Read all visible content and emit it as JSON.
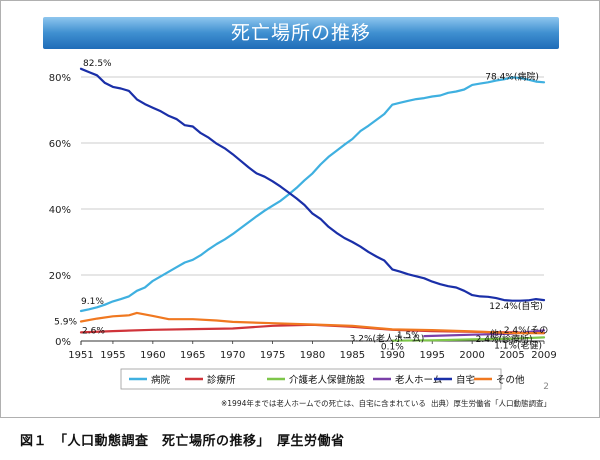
{
  "page": {
    "title": "死亡場所の推移",
    "footnote": "※1994年までは老人ホームでの死亡は、自宅に含まれている",
    "source": "出典）厚生労働省「人口動態調査」",
    "slide_number": "2",
    "caption": "図１　「人口動態調査　死亡場所の推移」　厚生労働省"
  },
  "colors": {
    "hospital": "#3fb0e0",
    "clinic": "#d0343a",
    "care_facility": "#7ec64a",
    "nursing_home": "#7a3fa8",
    "home": "#1a2fa8",
    "other": "#f07820",
    "title_band": "#2f7cc4"
  },
  "chart_data": {
    "type": "line",
    "title": "",
    "xlabel": "",
    "ylabel": "",
    "xlim": [
      1951,
      2009
    ],
    "ylim": [
      0,
      85
    ],
    "x_ticks": [
      "1951",
      "1955",
      "1960",
      "1965",
      "1970",
      "1975",
      "1980",
      "1985",
      "1990",
      "1995",
      "2000",
      "2005",
      "2009"
    ],
    "y_ticks": [
      "0%",
      "20%",
      "40%",
      "60%",
      "80%"
    ],
    "legend_placement": "bottom",
    "series": [
      {
        "name": "病院",
        "key": "hospital",
        "points": [
          [
            1951,
            9.1
          ],
          [
            1952,
            9.6
          ],
          [
            1953,
            10.2
          ],
          [
            1954,
            11.0
          ],
          [
            1955,
            12.0
          ],
          [
            1956,
            12.7
          ],
          [
            1957,
            13.5
          ],
          [
            1958,
            15.2
          ],
          [
            1959,
            16.2
          ],
          [
            1960,
            18.2
          ],
          [
            1961,
            19.6
          ],
          [
            1962,
            21.0
          ],
          [
            1963,
            22.4
          ],
          [
            1964,
            23.8
          ],
          [
            1965,
            24.6
          ],
          [
            1966,
            26.0
          ],
          [
            1967,
            27.8
          ],
          [
            1968,
            29.4
          ],
          [
            1969,
            30.8
          ],
          [
            1970,
            32.4
          ],
          [
            1971,
            34.2
          ],
          [
            1972,
            36.0
          ],
          [
            1973,
            37.8
          ],
          [
            1974,
            39.5
          ],
          [
            1975,
            41.0
          ],
          [
            1976,
            42.5
          ],
          [
            1977,
            44.4
          ],
          [
            1978,
            46.4
          ],
          [
            1979,
            48.7
          ],
          [
            1980,
            50.8
          ],
          [
            1981,
            53.5
          ],
          [
            1982,
            55.8
          ],
          [
            1983,
            57.6
          ],
          [
            1984,
            59.5
          ],
          [
            1985,
            61.2
          ],
          [
            1986,
            63.6
          ],
          [
            1987,
            65.2
          ],
          [
            1988,
            67.0
          ],
          [
            1989,
            68.8
          ],
          [
            1990,
            71.6
          ],
          [
            1991,
            72.2
          ],
          [
            1992,
            72.8
          ],
          [
            1993,
            73.3
          ],
          [
            1994,
            73.6
          ],
          [
            1995,
            74.1
          ],
          [
            1996,
            74.4
          ],
          [
            1997,
            75.2
          ],
          [
            1998,
            75.6
          ],
          [
            1999,
            76.2
          ],
          [
            2000,
            77.6
          ],
          [
            2001,
            78.0
          ],
          [
            2002,
            78.4
          ],
          [
            2003,
            78.9
          ],
          [
            2004,
            79.3
          ],
          [
            2005,
            79.9
          ],
          [
            2006,
            79.7
          ],
          [
            2007,
            79.2
          ],
          [
            2008,
            78.6
          ],
          [
            2009,
            78.4
          ]
        ]
      },
      {
        "name": "診療所",
        "key": "clinic",
        "points": [
          [
            1951,
            2.6
          ],
          [
            1955,
            3.0
          ],
          [
            1960,
            3.4
          ],
          [
            1965,
            3.6
          ],
          [
            1970,
            3.8
          ],
          [
            1975,
            4.6
          ],
          [
            1980,
            4.9
          ],
          [
            1985,
            4.3
          ],
          [
            1990,
            3.4
          ],
          [
            1995,
            3.0
          ],
          [
            2000,
            2.8
          ],
          [
            2005,
            2.6
          ],
          [
            2009,
            2.4
          ]
        ]
      },
      {
        "name": "介護老人保健施設",
        "key": "care_facility",
        "points": [
          [
            1990,
            0.1
          ],
          [
            1995,
            0.2
          ],
          [
            2000,
            0.5
          ],
          [
            2005,
            0.7
          ],
          [
            2009,
            1.1
          ]
        ]
      },
      {
        "name": "老人ホーム",
        "key": "nursing_home",
        "points": [
          [
            1994,
            1.5
          ],
          [
            2000,
            1.9
          ],
          [
            2005,
            2.2
          ],
          [
            2009,
            3.2
          ]
        ]
      },
      {
        "name": "自宅",
        "key": "home",
        "points": [
          [
            1951,
            82.5
          ],
          [
            1952,
            81.5
          ],
          [
            1953,
            80.5
          ],
          [
            1954,
            78.2
          ],
          [
            1955,
            77.0
          ],
          [
            1956,
            76.5
          ],
          [
            1957,
            75.8
          ],
          [
            1958,
            73.2
          ],
          [
            1959,
            71.8
          ],
          [
            1960,
            70.7
          ],
          [
            1961,
            69.6
          ],
          [
            1962,
            68.2
          ],
          [
            1963,
            67.2
          ],
          [
            1964,
            65.4
          ],
          [
            1965,
            65.0
          ],
          [
            1966,
            63.0
          ],
          [
            1967,
            61.6
          ],
          [
            1968,
            59.8
          ],
          [
            1969,
            58.4
          ],
          [
            1970,
            56.6
          ],
          [
            1971,
            54.6
          ],
          [
            1972,
            52.6
          ],
          [
            1973,
            50.8
          ],
          [
            1974,
            49.8
          ],
          [
            1975,
            48.4
          ],
          [
            1976,
            46.8
          ],
          [
            1977,
            45.0
          ],
          [
            1978,
            43.2
          ],
          [
            1979,
            41.2
          ],
          [
            1980,
            38.6
          ],
          [
            1981,
            37.0
          ],
          [
            1982,
            34.6
          ],
          [
            1983,
            32.8
          ],
          [
            1984,
            31.2
          ],
          [
            1985,
            30.0
          ],
          [
            1986,
            28.6
          ],
          [
            1987,
            27.0
          ],
          [
            1988,
            25.6
          ],
          [
            1989,
            24.4
          ],
          [
            1990,
            21.7
          ],
          [
            1991,
            21.0
          ],
          [
            1992,
            20.2
          ],
          [
            1993,
            19.6
          ],
          [
            1994,
            19.0
          ],
          [
            1995,
            18.0
          ],
          [
            1996,
            17.2
          ],
          [
            1997,
            16.6
          ],
          [
            1998,
            16.2
          ],
          [
            1999,
            15.2
          ],
          [
            2000,
            13.9
          ],
          [
            2001,
            13.5
          ],
          [
            2002,
            13.4
          ],
          [
            2003,
            13.0
          ],
          [
            2004,
            12.4
          ],
          [
            2005,
            12.2
          ],
          [
            2006,
            12.2
          ],
          [
            2007,
            12.3
          ],
          [
            2008,
            12.7
          ],
          [
            2009,
            12.4
          ]
        ]
      },
      {
        "name": "その他",
        "key": "other",
        "points": [
          [
            1951,
            5.9
          ],
          [
            1953,
            6.8
          ],
          [
            1955,
            7.5
          ],
          [
            1957,
            7.8
          ],
          [
            1958,
            8.5
          ],
          [
            1960,
            7.6
          ],
          [
            1962,
            6.6
          ],
          [
            1965,
            6.6
          ],
          [
            1968,
            6.2
          ],
          [
            1970,
            5.8
          ],
          [
            1975,
            5.4
          ],
          [
            1980,
            5.0
          ],
          [
            1985,
            4.6
          ],
          [
            1990,
            3.5
          ],
          [
            1995,
            3.3
          ],
          [
            2000,
            2.9
          ],
          [
            2005,
            2.4
          ],
          [
            2009,
            2.4
          ]
        ]
      }
    ],
    "annotations": [
      {
        "text": "82.5%",
        "x": 1951,
        "y": 82.5,
        "key": "home",
        "anchor": "start",
        "dx": 2,
        "dy": -6
      },
      {
        "text": "9.1%",
        "x": 1951,
        "y": 9.1,
        "key": "hospital",
        "anchor": "start",
        "dx": 0,
        "dy": -10
      },
      {
        "text": "5.9%",
        "x": 1951,
        "y": 5.9,
        "key": "other",
        "anchor": "end",
        "dx": -4,
        "dy": 0
      },
      {
        "text": "2.6%",
        "x": 1951,
        "y": 2.6,
        "key": "clinic",
        "anchor": "start",
        "dx": 1,
        "dy": -2
      },
      {
        "text": "78.4%(病院)",
        "x": 2005,
        "y": 78.4,
        "key": "hospital",
        "anchor": "middle",
        "dx": 0,
        "dy": -6
      },
      {
        "text": "12.4%(自宅)",
        "x": 2005,
        "y": 12.4,
        "key": "home",
        "anchor": "middle",
        "dx": 4,
        "dy": 6
      },
      {
        "text": "3.2%(老人ホーム)",
        "x": 1994,
        "y": 3.2,
        "key": "nursing_home",
        "anchor": "end",
        "dx": 0,
        "dy": 8
      },
      {
        "text": "2.4%(診療所)",
        "x": 2004,
        "y": 2.4,
        "key": "clinic",
        "anchor": "middle",
        "dx": 0,
        "dy": 6
      },
      {
        "text": "2.4%(その",
        "x": 2006,
        "y": 2.4,
        "key": "other",
        "anchor": "middle",
        "dx": 6,
        "dy": -3
      },
      {
        "text": "他)",
        "x": 2003,
        "y": 2.4,
        "key": "other",
        "anchor": "middle",
        "dx": 0,
        "dy": 1
      },
      {
        "text": "1.5%",
        "x": 1992,
        "y": 1.5,
        "key": "nursing_home",
        "anchor": "middle",
        "dx": 0,
        "dy": -1
      },
      {
        "text": "0.1%",
        "x": 1990,
        "y": 0.1,
        "key": "care_facility",
        "anchor": "middle",
        "dx": 0,
        "dy": 6
      },
      {
        "text": "1.1%(老健)",
        "x": 2005,
        "y": 1.1,
        "key": "care_facility",
        "anchor": "middle",
        "dx": 6,
        "dy": 8
      }
    ]
  }
}
